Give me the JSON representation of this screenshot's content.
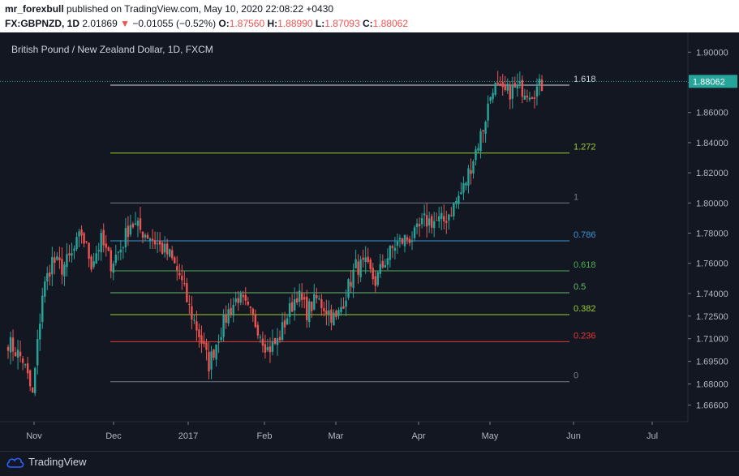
{
  "header": {
    "author": "mr_forexbull",
    "published_text": "published on TradingView.com, May 10, 2020 22:08:22 +0430",
    "symbol": "FX:GBPNZD, 1D",
    "last_price": "2.01869",
    "change_arrow": "▼",
    "change": "−0.01055 (−0.52%)",
    "o_label": "O:",
    "o_value": "1.87560",
    "h_label": "H:",
    "h_value": "1.88990",
    "l_label": "L:",
    "l_value": "1.87093",
    "c_label": "C:",
    "c_value": "1.88062"
  },
  "footer": {
    "logo_text": "TradingView"
  },
  "colors": {
    "background": "#131722",
    "up": "#26a69a",
    "down": "#ef5350",
    "grid": "#1e222d"
  },
  "chart_data": {
    "type": "candlestick",
    "title": "British Pound / New Zealand Dollar, 1D, FXCM",
    "y_ticks": [
      "1.90000",
      "1.88000",
      "1.86000",
      "1.84000",
      "1.82000",
      "1.80000",
      "1.78000",
      "1.76000",
      "1.74000",
      "1.72500",
      "1.71000",
      "1.69500",
      "1.68000",
      "1.66600"
    ],
    "x_ticks": [
      "Nov",
      "Dec",
      "2017",
      "Feb",
      "Mar",
      "Apr",
      "May",
      "Jun",
      "Jul"
    ],
    "ylim": [
      1.655,
      1.912
    ],
    "current_price": "1.88062",
    "grid": false,
    "fib_levels": [
      {
        "label": "1.618",
        "color": "#d1d4dc"
      },
      {
        "label": "1.272",
        "color": "#9ccc31"
      },
      {
        "label": "1",
        "color": "#787b86"
      },
      {
        "label": "0.786",
        "color": "#3a96d1"
      },
      {
        "label": "0.618",
        "color": "#4caf50"
      },
      {
        "label": "0.5",
        "color": "#66bb6a"
      },
      {
        "label": "0.382",
        "color": "#9ccc31"
      },
      {
        "label": "0.236",
        "color": "#e53935"
      },
      {
        "label": "0",
        "color": "#787b86"
      }
    ],
    "fib_prices": [
      1.8781,
      1.8331,
      1.8,
      1.7749,
      1.755,
      1.7405,
      1.726,
      1.708,
      1.6815
    ],
    "anchors": [
      [
        0,
        1.708
      ],
      [
        6,
        1.696
      ],
      [
        10,
        1.672
      ],
      [
        14,
        1.74
      ],
      [
        18,
        1.762
      ],
      [
        22,
        1.757
      ],
      [
        26,
        1.765
      ],
      [
        30,
        1.78
      ],
      [
        34,
        1.76
      ],
      [
        38,
        1.775
      ],
      [
        42,
        1.76
      ],
      [
        46,
        1.77
      ],
      [
        50,
        1.787
      ],
      [
        54,
        1.782
      ],
      [
        58,
        1.778
      ],
      [
        62,
        1.771
      ],
      [
        66,
        1.765
      ],
      [
        70,
        1.752
      ],
      [
        74,
        1.73
      ],
      [
        78,
        1.713
      ],
      [
        82,
        1.693
      ],
      [
        86,
        1.712
      ],
      [
        90,
        1.728
      ],
      [
        94,
        1.738
      ],
      [
        98,
        1.728
      ],
      [
        102,
        1.718
      ],
      [
        106,
        1.703
      ],
      [
        110,
        1.708
      ],
      [
        114,
        1.725
      ],
      [
        118,
        1.74
      ],
      [
        122,
        1.728
      ],
      [
        126,
        1.736
      ],
      [
        130,
        1.73
      ],
      [
        134,
        1.722
      ],
      [
        138,
        1.74
      ],
      [
        142,
        1.758
      ],
      [
        146,
        1.758
      ],
      [
        150,
        1.748
      ],
      [
        154,
        1.762
      ],
      [
        158,
        1.772
      ],
      [
        162,
        1.776
      ],
      [
        166,
        1.778
      ],
      [
        170,
        1.788
      ],
      [
        174,
        1.788
      ],
      [
        178,
        1.788
      ],
      [
        182,
        1.798
      ],
      [
        186,
        1.81
      ],
      [
        190,
        1.83
      ],
      [
        194,
        1.85
      ],
      [
        198,
        1.878
      ],
      [
        202,
        1.872
      ],
      [
        206,
        1.875
      ],
      [
        210,
        1.876
      ],
      [
        214,
        1.874
      ],
      [
        218,
        1.878
      ]
    ]
  }
}
